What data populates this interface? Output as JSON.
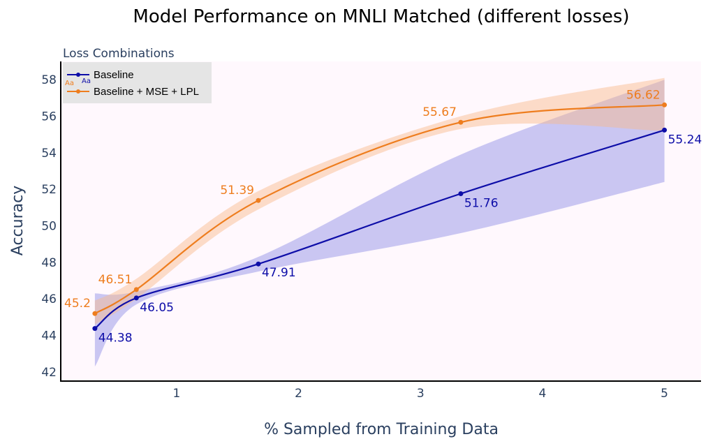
{
  "chart_data": {
    "type": "line",
    "title": "Model Performance on MNLI Matched (different losses)",
    "xlabel": "% Sampled from Training Data",
    "ylabel": "Accuracy",
    "xlim": [
      0.05,
      5.3
    ],
    "ylim": [
      41.5,
      59
    ],
    "x_ticks": [
      1,
      2,
      3,
      4,
      5
    ],
    "y_ticks": [
      42,
      44,
      46,
      48,
      50,
      52,
      54,
      56,
      58
    ],
    "grid": false,
    "legend": {
      "title": "Loss Combinations",
      "placement": "top-left",
      "glyph_text": "Aa"
    },
    "x": [
      0.33,
      0.67,
      1.67,
      3.33,
      5.0
    ],
    "series": [
      {
        "name": "Baseline",
        "color": "#0d0da8",
        "band_color": "#7b7be0",
        "values": [
          44.38,
          46.05,
          47.91,
          51.76,
          55.24
        ],
        "labels": [
          "44.38",
          "46.05",
          "47.91",
          "51.76",
          "55.24"
        ],
        "band_upper": [
          46.3,
          46.4,
          48.3,
          53.9,
          58.0
        ],
        "band_lower": [
          42.3,
          45.7,
          47.5,
          49.6,
          52.4
        ]
      },
      {
        "name": "Baseline + MSE + LPL",
        "color": "#ee7d1e",
        "band_color": "#f9b987",
        "values": [
          45.2,
          46.51,
          51.39,
          55.67,
          56.62
        ],
        "labels": [
          "45.2",
          "46.51",
          "51.39",
          "55.67",
          "56.62"
        ],
        "band_upper": [
          45.9,
          47.1,
          51.9,
          56.0,
          58.1
        ],
        "band_lower": [
          44.6,
          46.0,
          50.9,
          55.3,
          55.2
        ]
      }
    ]
  }
}
